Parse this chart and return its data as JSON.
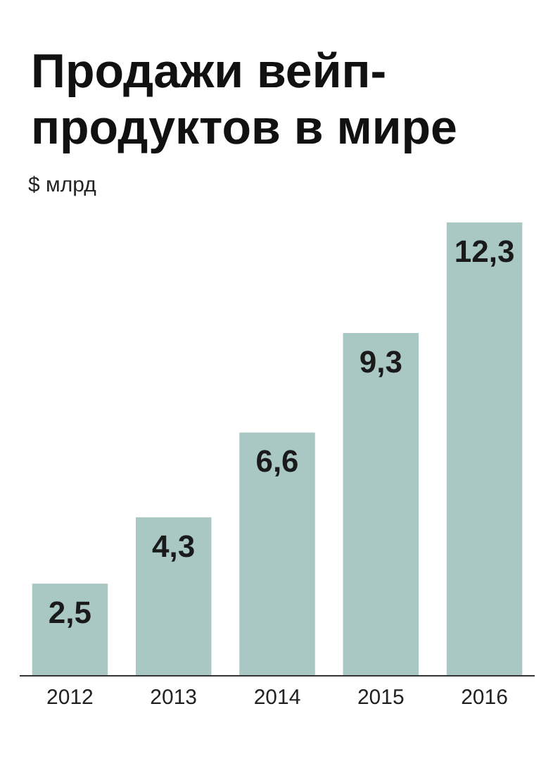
{
  "chart_data": {
    "type": "bar",
    "title": "Продажи вейп-\nпродуктов в мире",
    "ylabel": "$ млрд",
    "categories": [
      "2012",
      "2013",
      "2014",
      "2015",
      "2016"
    ],
    "values": [
      2.5,
      4.3,
      6.6,
      9.3,
      12.3
    ],
    "color": "#a9c8c4",
    "value_labels": [
      "2,5",
      "4,3",
      "6,6",
      "9,3",
      "12,3"
    ]
  }
}
